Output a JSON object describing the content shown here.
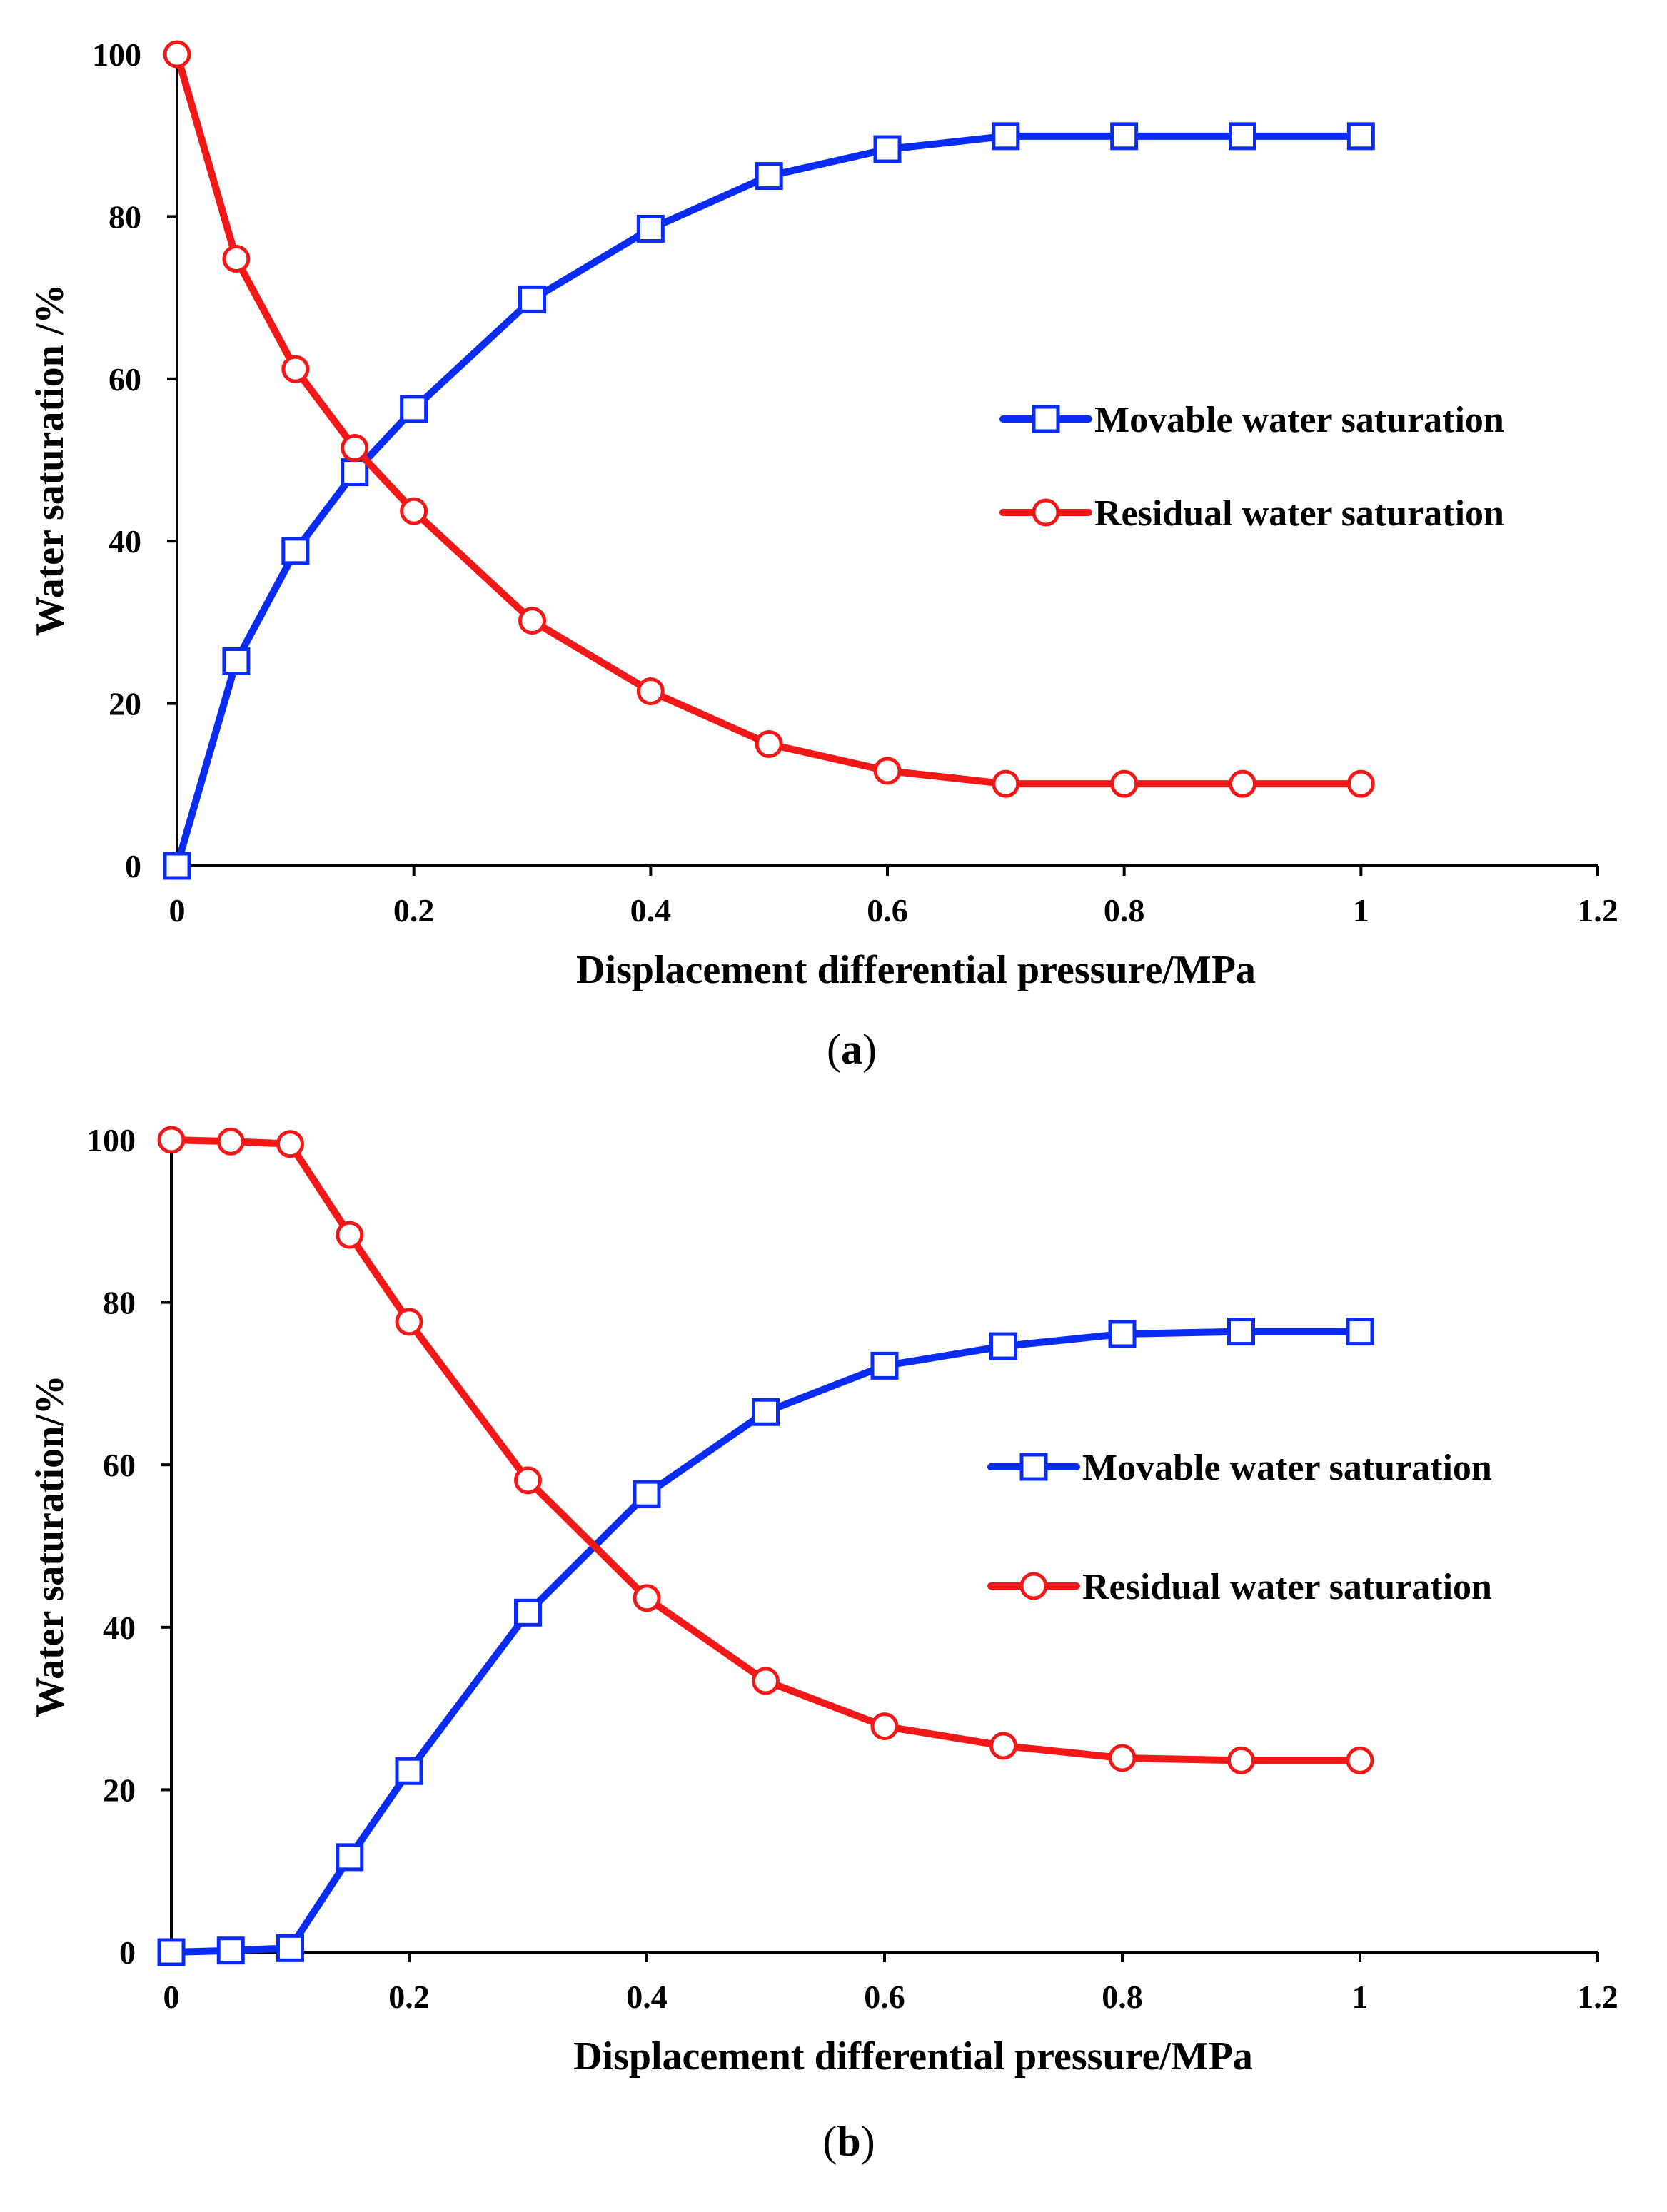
{
  "chart_data": [
    {
      "type": "line",
      "panel_label": "a",
      "xlabel": "Displacement differential pressure/MPa",
      "ylabel": "Water saturation /%",
      "xlim": [
        0,
        1.2
      ],
      "ylim": [
        0,
        100
      ],
      "x_ticks": [
        "0",
        "0.2",
        "0.4",
        "0.6",
        "0.8",
        "1",
        "1.2"
      ],
      "y_ticks": [
        "0",
        "20",
        "40",
        "60",
        "80",
        "100"
      ],
      "legend_position": "center-right",
      "series": [
        {
          "name": "Movable water saturation",
          "color": "#0a2cf2",
          "marker": "square",
          "x": [
            0,
            0.05,
            0.1,
            0.15,
            0.2,
            0.3,
            0.4,
            0.5,
            0.6,
            0.7,
            0.8,
            0.9,
            1.0
          ],
          "y": [
            0,
            25.2,
            38.8,
            48.5,
            56.3,
            69.8,
            78.5,
            85.0,
            88.3,
            89.9,
            89.9,
            89.9,
            89.9
          ]
        },
        {
          "name": "Residual water saturation",
          "color": "#f21818",
          "marker": "circle",
          "x": [
            0,
            0.05,
            0.1,
            0.15,
            0.2,
            0.3,
            0.4,
            0.5,
            0.6,
            0.7,
            0.8,
            0.9,
            1.0
          ],
          "y": [
            100,
            74.8,
            61.2,
            51.5,
            43.7,
            30.2,
            21.5,
            15.0,
            11.7,
            10.1,
            10.1,
            10.1,
            10.1
          ]
        }
      ]
    },
    {
      "type": "line",
      "panel_label": "b",
      "xlabel": "Displacement differential pressure/MPa",
      "ylabel": "Water saturation/%",
      "xlim": [
        0,
        1.2
      ],
      "ylim": [
        0,
        100
      ],
      "x_ticks": [
        "0",
        "0.2",
        "0.4",
        "0.6",
        "0.8",
        "1",
        "1.2"
      ],
      "y_ticks": [
        "0",
        "20",
        "40",
        "60",
        "80",
        "100"
      ],
      "legend_position": "center-right",
      "series": [
        {
          "name": "Movable water saturation",
          "color": "#0a2cf2",
          "marker": "square",
          "x": [
            0,
            0.05,
            0.1,
            0.15,
            0.2,
            0.3,
            0.4,
            0.5,
            0.6,
            0.7,
            0.8,
            0.9,
            1.0
          ],
          "y": [
            0,
            0.2,
            0.5,
            11.7,
            22.3,
            41.8,
            56.4,
            66.5,
            72.2,
            74.6,
            76.1,
            76.4,
            76.4
          ]
        },
        {
          "name": "Residual water saturation",
          "color": "#f21818",
          "marker": "circle",
          "x": [
            0,
            0.05,
            0.1,
            0.15,
            0.2,
            0.3,
            0.4,
            0.5,
            0.6,
            0.7,
            0.8,
            0.9,
            1.0
          ],
          "y": [
            100,
            99.8,
            99.5,
            88.3,
            77.6,
            58.1,
            43.6,
            33.4,
            27.8,
            25.4,
            23.9,
            23.6,
            23.6
          ]
        }
      ]
    }
  ]
}
